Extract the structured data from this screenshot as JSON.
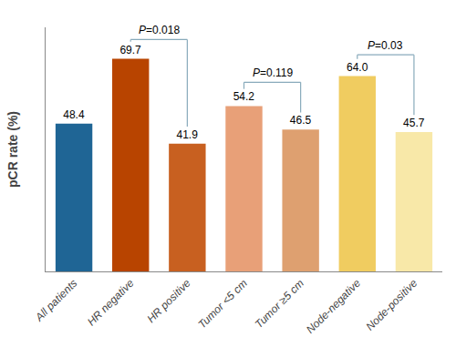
{
  "chart_data": {
    "type": "bar",
    "categories": [
      "All patients",
      "HR negative",
      "HR positive",
      "Tumor <5 cm",
      "Tumor ≥5 cm",
      "Node-negative",
      "Node-positive"
    ],
    "values": [
      48.4,
      69.7,
      41.9,
      54.2,
      46.5,
      64.0,
      45.7
    ],
    "value_labels": [
      "48.4",
      "69.7",
      "41.9",
      "54.2",
      "46.5",
      "64.0",
      "45.7"
    ],
    "colors": [
      "#1f6595",
      "#b84400",
      "#c86020",
      "#e8a078",
      "#dea070",
      "#f0cc60",
      "#f8e8a8"
    ],
    "y_label": "pCR rate (%)",
    "ylim": [
      0,
      80
    ],
    "tick_labels": "x",
    "grid": false,
    "data_labels": true,
    "annotations": [
      {
        "from": "HR negative",
        "to": "HR positive",
        "y": 76,
        "text": "P=0.018",
        "color": "#88aabb"
      },
      {
        "from": "Tumor <5 cm",
        "to": "Tumor ≥5 cm",
        "y": 62,
        "text": "P=0.119",
        "color": "#88aabb"
      },
      {
        "from": "Node-negative",
        "to": "Node-positive",
        "y": 71,
        "text": "P=0.03",
        "color": "#88aabb"
      }
    ]
  }
}
